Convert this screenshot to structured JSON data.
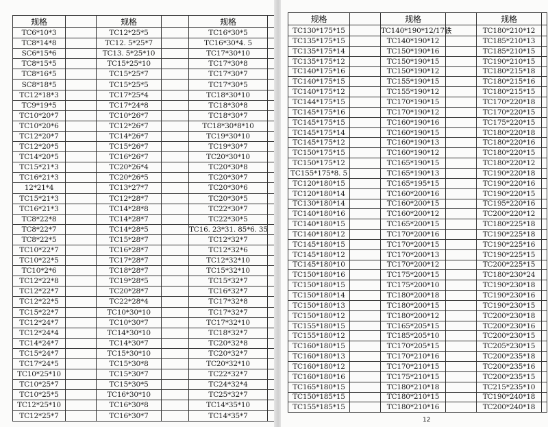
{
  "left_page": {
    "header": "规格",
    "columns": [
      [
        "TC6*10*3",
        "TC8*14*8",
        "SC6*15*6",
        "TC8*15*5",
        "TC8*16*5",
        "SC8*18*5",
        "TC12*18*3",
        "TC9*19*5",
        "TC10*20*7",
        "TC10*20*6",
        "TC12*20*7",
        "TC12*20*5",
        "TC14*20*5",
        "TC15*21*3",
        "TC16*21*3",
        "12*21*4",
        "TC15*21*3",
        "TC16*21*3",
        "TC8*22*8",
        "TC8*22*7",
        "TC8*22*5",
        "TC10*22*7",
        "TC10*22*5",
        "TC10*2*6",
        "TC12*22*8",
        "TC12*22*7",
        "TC12*22*5",
        "TC15*22*7",
        "TC12*24*7",
        "TC12*24*4",
        "TC14*24*7",
        "TC15*24*7",
        "TC17*24*5",
        "TC10*25*10",
        "TC10*25*7",
        "TC10*25*5",
        "TC12*25*10",
        "TC12*25*7"
      ],
      [
        "TC12*25*5",
        "TC12. 5*25*7",
        "TC13. 5*25*10",
        "TC15*25*10",
        "TC15*25*7",
        "TC15*25*5",
        "TC17*25*4",
        "TC17*24*8",
        "TC10*26*7",
        "TC12*26*7",
        "TC14*26*7",
        "TC15*26*7",
        "TC16*26*7",
        "TC20*26*4",
        "TC20*26*5",
        "TC13*27*7",
        "TC12*28*7",
        "TC14*28*8",
        "TC14*28*7",
        "TC14*28*5",
        "TC15*28*7",
        "TC16*28*7",
        "TC17*28*7",
        "TC18*28*7",
        "TC19*28*5",
        "TC20*28*7",
        "TC22*28*4",
        "TC10*30*10",
        "TC10*30*7",
        "TC14*30*10",
        "TC14*30*7",
        "TC15*30*10",
        "TC15*30*8",
        "TC15*30*7",
        "TC15*30*5",
        "TC16*30*10",
        "TC16*30*8",
        "TC16*30*7"
      ],
      [
        "TC16*30*5",
        "TC16*30*4. 5",
        "TC17*30*10",
        "TC17*30*8",
        "TC17*30*7",
        "TC17*30*5",
        "TC18*30*10",
        "TC18*30*8",
        "TC18*30*7",
        "TC18*30*8*10",
        "TC19*30*10",
        "TC19*30*7",
        "TC20*30*10",
        "TC20*30*8",
        "TC20*30*7",
        "TC20*30*6",
        "TC20*30*5",
        "TC22*30*7",
        "TC22*30*5",
        "TC16. 23*31. 85*6. 35",
        "TC12*32*7",
        "TC12*32*6",
        "TC12*32*10",
        "TC15*32*10",
        "TC15*32*7",
        "TC16*32*7",
        "TC17*32*8",
        "TC17*32*7",
        "TC17*32*10",
        "TC18*32*7",
        "TC20*32*8",
        "TC20*32*7",
        "TC20*32*10",
        "TC22*32*7",
        "TC24*32*4",
        "TC25*32*7",
        "TC14*35*10",
        "TC14*35*7"
      ]
    ]
  },
  "right_page": {
    "header": "规格",
    "columns": [
      [
        "TC130*175*15",
        "TC135*175*15",
        "TC135*175*14",
        "TC135*175*12",
        "TC140*175*16",
        "TC140*175*15",
        "TC140*175*12",
        "TC144*175*15",
        "TC145*175*16",
        "TC145*175*15",
        "TC145*175*14",
        "TC145*175*12",
        "TC150*175*15",
        "TC150*175*12",
        "TC155*175*8. 5",
        "TC120*180*15",
        "TC120*180*14",
        "TC130*180*14",
        "TC140*180*16",
        "TC140*180*15",
        "TC140*180*12",
        "TC145*180*15",
        "TC145*180*12",
        "TC145*180*10",
        "TC150*180*16",
        "TC150*180*15",
        "TC150*180*14",
        "TC150*180*13",
        "TC150*180*12",
        "TC155*180*15",
        "TC155*180*12",
        "TC160*180*15",
        "TC160*180*13",
        "TC160*180*12",
        "TC160*180*16",
        "TC165*180*15",
        "TC150*185*15",
        "TC155*185*15"
      ],
      [
        "TC140*190*12/17铁",
        "TC140*190*12",
        "TC150*190*16",
        "TC150*190*15",
        "TC150*190*12",
        "TC155*190*15",
        "TC155*190*12",
        "TC170*190*15",
        "TC170*190*12",
        "TC160*190*16",
        "TC160*190*15",
        "TC160*190*13",
        "TC160*190*12",
        "TC165*190*15",
        "TC165*190*13",
        "TC165*195*15",
        "TC160*200*16",
        "TC160*200*15",
        "TC160*200*12",
        "TC165*200*15",
        "TC170*200*16",
        "TC170*200*15",
        "TC170*200*13",
        "TC170*200*12",
        "TC175*200*15",
        "TC175*200*10",
        "TC180*200*18",
        "TC180*200*15",
        "TC180*200*12",
        "TC165*205*15",
        "TC185*205*10",
        "TC170*205*15",
        "TC170*210*16",
        "TC170*210*15",
        "TC175*210*15",
        "TC180*210*18",
        "TC180*210*15",
        "TC180*210*16"
      ],
      [
        "TC180*210*12",
        "TC185*210*13",
        "TC185*210*15",
        "TC190*210*15",
        "TC180*215*18",
        "TC180*215*16",
        "TC180*215*15",
        "TC170*220*18",
        "TC170*220*15",
        "TC175*220*15",
        "TC180*220*18",
        "TC180*220*16",
        "TC180*220*15",
        "TC180*220*12",
        "TC190*220*18",
        "TC190*220*16",
        "TC190*220*15",
        "TC195*220*16",
        "TC200*220*12",
        "TC180*225*18",
        "TC190*225*18",
        "TC190*225*16",
        "TC190*225*15",
        "TC200*225*15",
        "TC180*230*24",
        "TC190*230*18",
        "TC190*230*16",
        "TC190*230*15",
        "TC200*230*18",
        "TC200*230*16",
        "TC200*230*15",
        "TC205*230*15",
        "TC200*235*18",
        "TC200*235*16",
        "TC200*235*15",
        "TC215*235*10",
        "TC190*240*18",
        "TC200*240*18"
      ]
    ],
    "page_number": "12"
  }
}
